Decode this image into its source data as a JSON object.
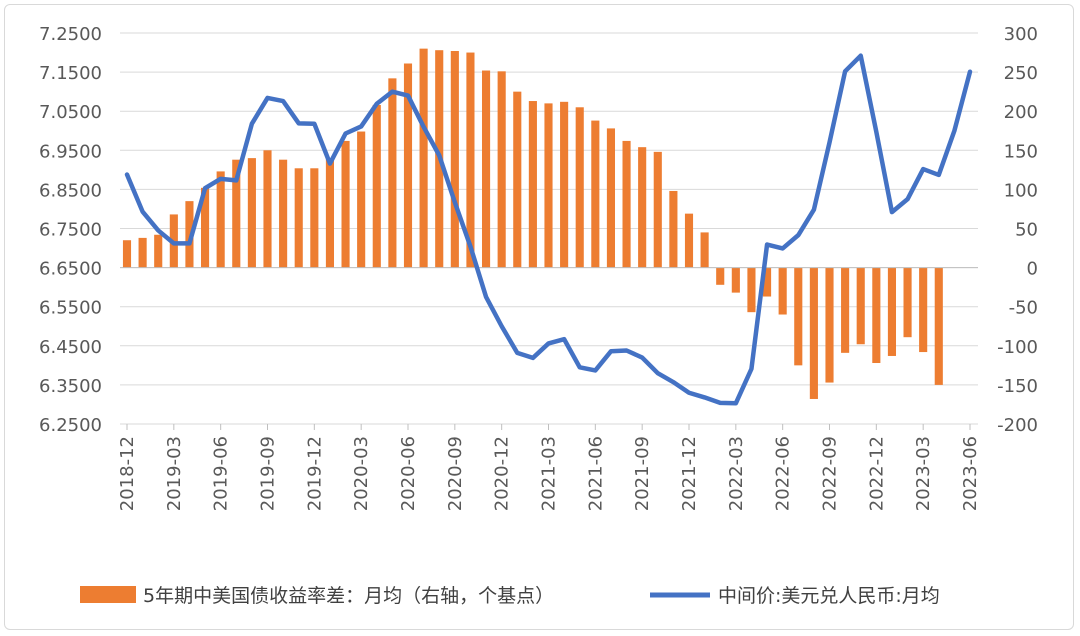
{
  "chart_data": {
    "type": "bar+line",
    "categories": [
      "2018-12",
      "2019-01",
      "2019-02",
      "2019-03",
      "2019-04",
      "2019-05",
      "2019-06",
      "2019-07",
      "2019-08",
      "2019-09",
      "2019-10",
      "2019-11",
      "2019-12",
      "2020-01",
      "2020-02",
      "2020-03",
      "2020-04",
      "2020-05",
      "2020-06",
      "2020-07",
      "2020-08",
      "2020-09",
      "2020-10",
      "2020-11",
      "2020-12",
      "2021-01",
      "2021-02",
      "2021-03",
      "2021-04",
      "2021-05",
      "2021-06",
      "2021-07",
      "2021-08",
      "2021-09",
      "2021-10",
      "2021-11",
      "2021-12",
      "2022-01",
      "2022-02",
      "2022-03",
      "2022-04",
      "2022-05",
      "2022-06",
      "2022-07",
      "2022-08",
      "2022-09",
      "2022-10",
      "2022-11",
      "2022-12",
      "2023-01",
      "2023-02",
      "2023-03",
      "2023-04",
      "2023-05",
      "2023-06"
    ],
    "x_tick_labels": [
      "2018-12",
      "2019-03",
      "2019-06",
      "2019-09",
      "2019-12",
      "2020-03",
      "2020-06",
      "2020-09",
      "2020-12",
      "2021-03",
      "2021-06",
      "2021-09",
      "2021-12",
      "2022-03",
      "2022-06",
      "2022-09",
      "2022-12",
      "2023-03",
      "2023-06"
    ],
    "left_axis": {
      "min": 6.25,
      "max": 7.25,
      "step": 0.1,
      "tick_labels": [
        "7.2500",
        "7.1500",
        "7.0500",
        "6.9500",
        "6.8500",
        "6.7500",
        "6.6500",
        "6.5500",
        "6.4500",
        "6.3500",
        "6.2500"
      ]
    },
    "right_axis": {
      "min": -200,
      "max": 300,
      "step": 50,
      "tick_labels": [
        "300",
        "250",
        "200",
        "150",
        "100",
        "50",
        "0",
        "-50",
        "-100",
        "-150",
        "-200"
      ]
    },
    "grid": "horizontal",
    "legend_position": "bottom",
    "series": [
      {
        "name": "5年期中美国债收益率差：月均（右轴，个基点）",
        "type": "bar",
        "axis": "right",
        "color": "#ED7D31",
        "values": [
          35,
          38,
          42,
          68,
          85,
          102,
          123,
          138,
          140,
          150,
          138,
          127,
          127,
          140,
          162,
          174,
          208,
          242,
          261,
          280,
          278,
          277,
          275,
          252,
          251,
          225,
          213,
          210,
          212,
          205,
          188,
          178,
          162,
          154,
          148,
          98,
          69,
          45,
          -22,
          -32,
          -57,
          -37,
          -60,
          -125,
          -168,
          -147,
          -109,
          -98,
          -122,
          -113,
          -89,
          -108,
          -150,
          null,
          null
        ]
      },
      {
        "name": "中间价:美元兑人民币:月均",
        "type": "line",
        "axis": "left",
        "color": "#4472C4",
        "values": [
          6.888,
          6.793,
          6.745,
          6.712,
          6.712,
          6.853,
          6.877,
          6.873,
          7.018,
          7.084,
          7.076,
          7.019,
          7.018,
          6.916,
          6.993,
          7.011,
          7.069,
          7.1,
          7.09,
          7.01,
          6.937,
          6.817,
          6.704,
          6.575,
          6.5,
          6.432,
          6.419,
          6.456,
          6.467,
          6.395,
          6.387,
          6.436,
          6.438,
          6.42,
          6.38,
          6.357,
          6.33,
          6.318,
          6.304,
          6.303,
          6.391,
          6.709,
          6.699,
          6.733,
          6.798,
          6.97,
          7.152,
          7.192,
          6.997,
          6.792,
          6.825,
          6.902,
          6.887,
          7.0,
          7.151
        ]
      }
    ]
  }
}
